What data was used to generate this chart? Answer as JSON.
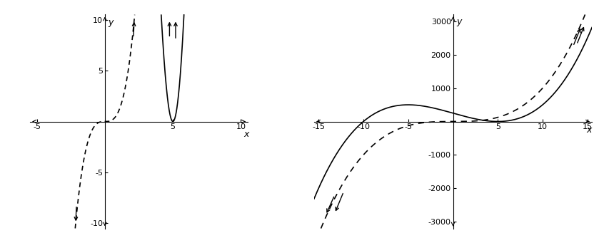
{
  "left": {
    "xlim": [
      -5.5,
      10.5
    ],
    "ylim": [
      -10.5,
      10.5
    ],
    "xticks": [
      -5,
      5,
      10
    ],
    "yticks": [
      -10,
      -5,
      5,
      10
    ],
    "xlabel": "x",
    "ylabel": "y"
  },
  "right": {
    "xlim": [
      -15.5,
      15.5
    ],
    "ylim": [
      -3200,
      3200
    ],
    "xticks": [
      -15,
      -10,
      -5,
      5,
      10,
      15
    ],
    "yticks": [
      -3000,
      -2000,
      -1000,
      1000,
      2000,
      3000
    ],
    "xlabel": "x",
    "ylabel": "y"
  },
  "line_color": "#000000",
  "dashed_color": "#000000",
  "background_color": "#ffffff",
  "figsize": [
    8.46,
    3.41
  ],
  "dpi": 100
}
